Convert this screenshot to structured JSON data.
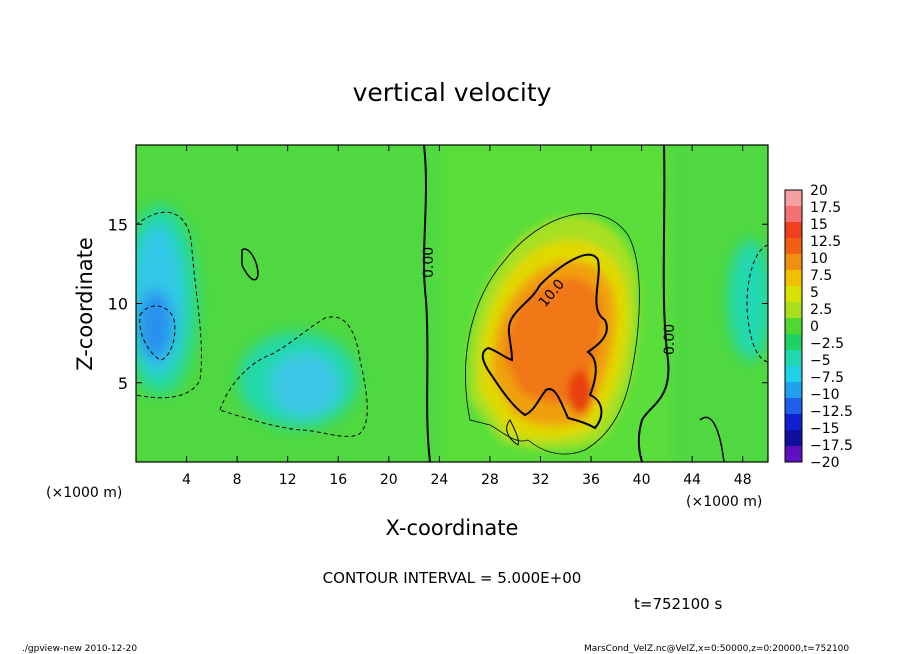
{
  "chart_data": {
    "type": "heatmap",
    "title": "vertical velocity",
    "xlabel": "X-coordinate",
    "ylabel": "Z-coordinate",
    "x_unit_label": "(×1000 m)",
    "z_unit_label": "(×1000 m)",
    "xlim": [
      0,
      50
    ],
    "ylim": [
      0,
      20
    ],
    "x_ticks": [
      4,
      8,
      12,
      16,
      20,
      24,
      28,
      32,
      36,
      40,
      44,
      48
    ],
    "y_ticks": [
      5,
      10,
      15
    ],
    "colorbar": {
      "labels": [
        "20",
        "17.5",
        "15",
        "12.5",
        "10",
        "7.5",
        "5",
        "2.5",
        "0",
        "−2.5",
        "−5",
        "−7.5",
        "−10",
        "−12.5",
        "−15",
        "−17.5",
        "−20"
      ],
      "colors": [
        "#f7a0a0",
        "#f57070",
        "#f04020",
        "#f06010",
        "#f09010",
        "#f0c000",
        "#d8e000",
        "#a8e020",
        "#50d830",
        "#20d060",
        "#20d8b0",
        "#20d0e8",
        "#20a0f0",
        "#2060e8",
        "#1020d0",
        "#1010a0",
        "#6010c0"
      ]
    },
    "contour_labels": [
      "0.00",
      "10.0",
      "0.00"
    ],
    "contour_interval_text": "CONTOUR INTERVAL = 5.000E+00",
    "time_text": "t=752100 s",
    "footer_left": "./gpview-new  2010-12-20",
    "footer_right": "MarsCond_VelZ.nc@VelZ,x=0:50000,z=0:20000,t=752100",
    "grid": false
  }
}
